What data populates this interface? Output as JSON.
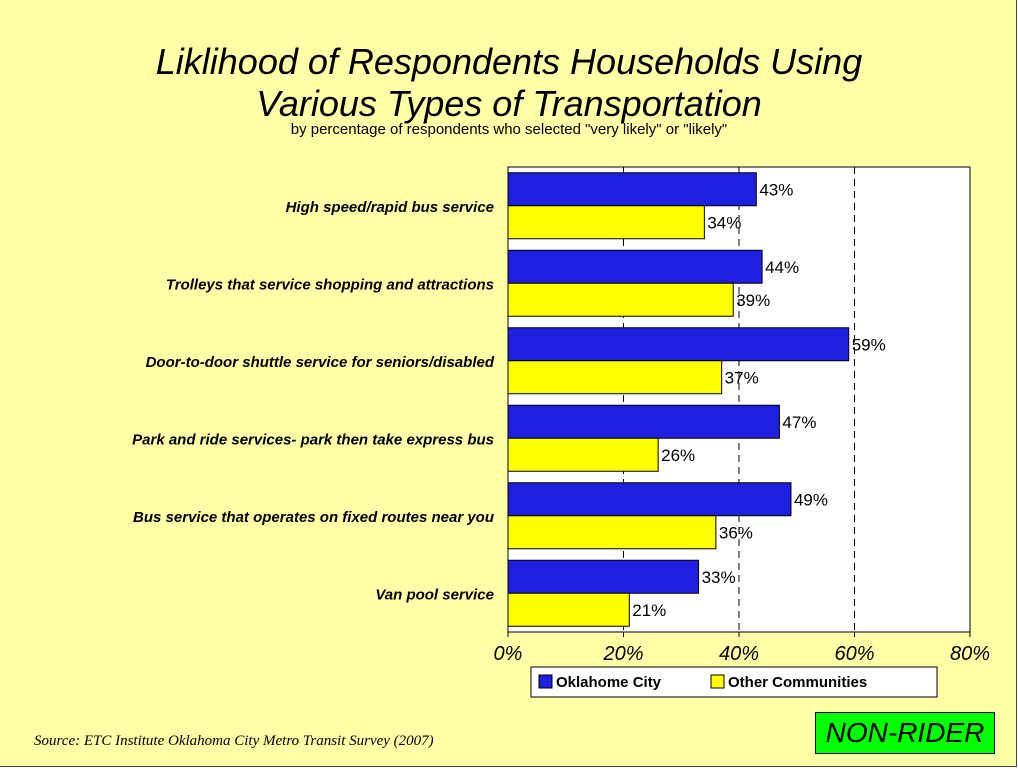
{
  "header": {
    "title_line1": "Liklihood of Respondents Households Using",
    "title_line2": "Various Types of Transportation",
    "subtitle": "by percentage of respondents who selected \"very likely\" or \"likely\""
  },
  "footer": {
    "source": "Source:  ETC Institute Oklahoma City Metro Transit Survey (2007)",
    "badge": "NON-RIDER"
  },
  "colors": {
    "background": "#ffffa8",
    "series_1": "#1f1fe0",
    "series_2": "#ffff00"
  },
  "chart_data": {
    "type": "bar",
    "orientation": "horizontal",
    "categories": [
      "High speed/rapid bus service",
      "Trolleys that service shopping and attractions",
      "Door-to-door shuttle service for seniors/disabled",
      "Park and ride services- park then take express bus",
      "Bus service that operates on fixed routes near you",
      "Van pool service"
    ],
    "series": [
      {
        "name": "Oklahome City",
        "values": [
          43,
          44,
          59,
          47,
          49,
          33
        ],
        "labels": [
          "43%",
          "44%",
          "59%",
          "47%",
          "49%",
          "33%"
        ]
      },
      {
        "name": "Other Communities",
        "values": [
          34,
          39,
          37,
          26,
          36,
          21
        ],
        "labels": [
          "34%",
          "39%",
          "37%",
          "26%",
          "36%",
          "21%"
        ]
      }
    ],
    "xlim": [
      0,
      80
    ],
    "xticks": [
      0,
      20,
      40,
      60,
      80
    ],
    "xtick_labels": [
      "0%",
      "20%",
      "40%",
      "60%",
      "80%"
    ],
    "gridlines": "dashed vertical",
    "legend_position": "bottom"
  }
}
